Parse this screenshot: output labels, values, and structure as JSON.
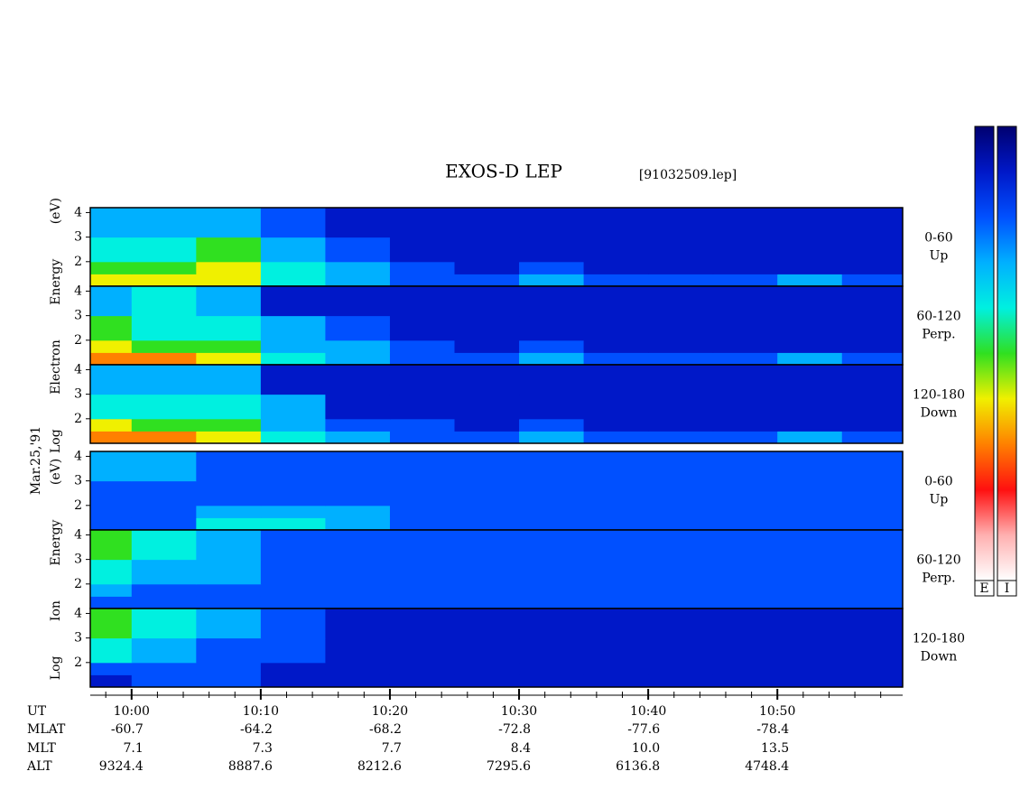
{
  "title": "EXOS-D LEP",
  "file": "[91032509.lep]",
  "date": "Mar.25,'91",
  "colorbar": {
    "colors": [
      "#000070",
      "#0018c8",
      "#0050ff",
      "#00b0ff",
      "#00f0e0",
      "#30e020",
      "#f0f000",
      "#ff8000",
      "#ff1010",
      "#ffb0b0",
      "#ffffff"
    ],
    "labels": [
      "E",
      "I"
    ]
  },
  "time_axis": {
    "xlim": [
      56.8,
      119.7
    ],
    "ticks": [
      {
        "value": 60,
        "label": "10:00"
      },
      {
        "value": 70,
        "label": "10:10"
      },
      {
        "value": 80,
        "label": "10:20"
      },
      {
        "value": 90,
        "label": "10:30"
      },
      {
        "value": 100,
        "label": "10:40"
      },
      {
        "value": 110,
        "label": "10:50"
      }
    ],
    "minor_ticks": [
      58,
      62,
      64,
      66,
      68,
      72,
      74,
      76,
      78,
      82,
      84,
      86,
      88,
      92,
      94,
      96,
      98,
      102,
      104,
      106,
      108,
      112,
      114,
      116,
      118
    ],
    "bins": [
      56.8,
      60,
      65,
      70,
      75,
      80,
      85,
      90,
      95,
      100,
      105,
      110,
      115,
      119.7
    ]
  },
  "orbit_table": {
    "rows": [
      {
        "label": "UT"
      },
      {
        "label": "MLAT",
        "values": [
          "-60.7",
          "-64.2",
          "-68.2",
          "-72.8",
          "-77.6",
          "-78.4"
        ]
      },
      {
        "label": "MLT",
        "values": [
          "7.1",
          "7.3",
          "7.7",
          "8.4",
          "10.0",
          "13.5"
        ]
      },
      {
        "label": "ALT",
        "values": [
          "9324.4",
          "8887.6",
          "8212.6",
          "7295.6",
          "6136.8",
          "4748.4"
        ]
      }
    ]
  },
  "groups": [
    {
      "ylabel": "Log Electron Energy (eV)",
      "panels": [
        {
          "label": "0-60",
          "sublabel": "Up",
          "ylim": [
            1,
            4.2
          ],
          "yticks": [
            2,
            3,
            4
          ],
          "energy_bins": [
            1,
            1.5,
            2,
            3,
            4.2
          ],
          "cells": [
            [
              6,
              6,
              6,
              4,
              3,
              2,
              2,
              3,
              2,
              2,
              2,
              3,
              2
            ],
            [
              5,
              5,
              6,
              4,
              3,
              2,
              1,
              2,
              1,
              1,
              1,
              1,
              1
            ],
            [
              4,
              4,
              5,
              3,
              2,
              1,
              1,
              1,
              1,
              1,
              1,
              1,
              1
            ],
            [
              3,
              3,
              3,
              2,
              1,
              1,
              1,
              1,
              1,
              1,
              1,
              1,
              1
            ]
          ]
        },
        {
          "label": "60-120",
          "sublabel": "Perp.",
          "ylim": [
            1,
            4.2
          ],
          "yticks": [
            2,
            3,
            4
          ],
          "energy_bins": [
            1,
            1.5,
            2,
            3,
            4.2
          ],
          "cells": [
            [
              7,
              7,
              6,
              4,
              3,
              2,
              2,
              3,
              2,
              2,
              2,
              3,
              2
            ],
            [
              6,
              5,
              5,
              3,
              3,
              2,
              1,
              2,
              1,
              1,
              1,
              1,
              1
            ],
            [
              5,
              4,
              4,
              3,
              2,
              1,
              1,
              1,
              1,
              1,
              1,
              1,
              1
            ],
            [
              3,
              4,
              3,
              1,
              1,
              1,
              1,
              1,
              1,
              1,
              1,
              1,
              1
            ]
          ]
        },
        {
          "label": "120-180",
          "sublabel": "Down",
          "ylim": [
            1,
            4.2
          ],
          "yticks": [
            2,
            3,
            4
          ],
          "energy_bins": [
            1,
            1.5,
            2,
            3,
            4.2
          ],
          "cells": [
            [
              7,
              7,
              6,
              4,
              3,
              2,
              2,
              3,
              2,
              2,
              2,
              3,
              2
            ],
            [
              6,
              5,
              5,
              3,
              2,
              2,
              1,
              2,
              1,
              1,
              1,
              1,
              1
            ],
            [
              4,
              4,
              4,
              3,
              1,
              1,
              1,
              1,
              1,
              1,
              1,
              1,
              1
            ],
            [
              3,
              3,
              3,
              1,
              1,
              1,
              1,
              1,
              1,
              1,
              1,
              1,
              1
            ]
          ]
        }
      ]
    },
    {
      "ylabel": "Log Ion Energy (eV)",
      "panels": [
        {
          "label": "0-60",
          "sublabel": "Up",
          "ylim": [
            1,
            4.2
          ],
          "yticks": [
            2,
            3,
            4
          ],
          "energy_bins": [
            1,
            1.5,
            2,
            3,
            4.2
          ],
          "cells": [
            [
              2,
              2,
              4,
              4,
              3,
              2,
              2,
              2,
              2,
              2,
              2,
              2,
              2
            ],
            [
              2,
              2,
              3,
              3,
              3,
              2,
              2,
              2,
              2,
              2,
              2,
              2,
              2
            ],
            [
              2,
              2,
              2,
              2,
              2,
              2,
              2,
              2,
              2,
              2,
              2,
              2,
              2
            ],
            [
              3,
              3,
              2,
              2,
              2,
              2,
              2,
              2,
              2,
              2,
              2,
              2,
              2
            ]
          ]
        },
        {
          "label": "60-120",
          "sublabel": "Perp.",
          "ylim": [
            1,
            4.2
          ],
          "yticks": [
            2,
            3,
            4
          ],
          "energy_bins": [
            1,
            1.5,
            2,
            3,
            4.2
          ],
          "cells": [
            [
              2,
              2,
              2,
              2,
              2,
              2,
              2,
              2,
              2,
              2,
              2,
              2,
              2
            ],
            [
              3,
              2,
              2,
              2,
              2,
              2,
              2,
              2,
              2,
              2,
              2,
              2,
              2
            ],
            [
              4,
              3,
              3,
              2,
              2,
              2,
              2,
              2,
              2,
              2,
              2,
              2,
              2
            ],
            [
              5,
              4,
              3,
              2,
              2,
              2,
              2,
              2,
              2,
              2,
              2,
              2,
              2
            ]
          ]
        },
        {
          "label": "120-180",
          "sublabel": "Down",
          "ylim": [
            1,
            4.2
          ],
          "yticks": [
            2,
            3,
            4
          ],
          "energy_bins": [
            1,
            1.5,
            2,
            3,
            4.2
          ],
          "cells": [
            [
              1,
              2,
              2,
              1,
              1,
              1,
              1,
              1,
              1,
              1,
              1,
              1,
              1
            ],
            [
              2,
              2,
              2,
              1,
              1,
              1,
              1,
              1,
              1,
              1,
              1,
              1,
              1
            ],
            [
              4,
              3,
              2,
              2,
              1,
              1,
              1,
              1,
              1,
              1,
              1,
              1,
              1
            ],
            [
              5,
              4,
              3,
              2,
              1,
              1,
              1,
              1,
              1,
              1,
              1,
              1,
              1
            ]
          ]
        }
      ]
    }
  ]
}
